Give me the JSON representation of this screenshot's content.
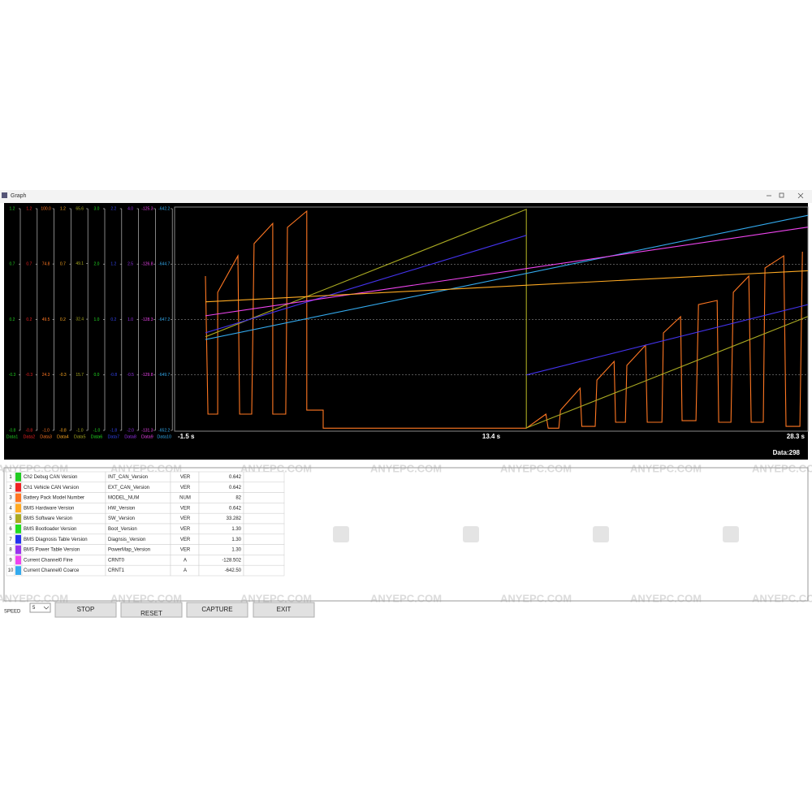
{
  "window": {
    "title": "Graph"
  },
  "graph": {
    "xlim": [
      -1.5,
      28.3
    ],
    "xticks": [
      {
        "value": -1.5,
        "label": "-1.5 s"
      },
      {
        "value": 13.4,
        "label": "13.4 s"
      },
      {
        "value": 28.3,
        "label": "28.3 s"
      }
    ],
    "axes": [
      {
        "name": "Data1",
        "color": "#22cc22",
        "ylim": [
          -0.8,
          1.2
        ],
        "ticks": [
          1.2,
          0.7,
          0.2,
          -0.3,
          -0.8
        ]
      },
      {
        "name": "Data2",
        "color": "#ee2222",
        "ylim": [
          -0.8,
          1.2
        ],
        "ticks": [
          1.2,
          0.7,
          0.2,
          -0.3,
          -0.8
        ]
      },
      {
        "name": "Data3",
        "color": "#ff7722",
        "ylim": [
          -1,
          100
        ],
        "ticks": [
          {
            "value": 100,
            "label": "100.0"
          },
          74.8,
          49.5,
          24.3,
          {
            "value": -1,
            "label": "-1.0"
          }
        ]
      },
      {
        "name": "Data4",
        "color": "#ffaa22",
        "ylim": [
          -0.8,
          1.2
        ],
        "ticks": [
          1.2,
          0.7,
          0.2,
          -0.3,
          -0.8
        ]
      },
      {
        "name": "Data5",
        "color": "#aaaa22",
        "ylim": [
          -1,
          65.6
        ],
        "ticks": [
          65.6,
          49.1,
          32.4,
          15.7,
          {
            "value": -1,
            "label": "-1.0"
          }
        ]
      },
      {
        "name": "Data6",
        "color": "#22dd22",
        "ylim": [
          -1,
          3
        ],
        "ticks": [
          {
            "value": 3,
            "label": "3.0"
          },
          {
            "value": 2,
            "label": "2.0"
          },
          {
            "value": 1,
            "label": "1.0"
          },
          {
            "value": 0,
            "label": "0.0"
          },
          {
            "value": -1,
            "label": "-1.0"
          }
        ]
      },
      {
        "name": "Data7",
        "color": "#3344ee",
        "ylim": [
          -1.8,
          2.2
        ],
        "ticks": [
          2.2,
          1.2,
          0.2,
          -0.8,
          -1.8
        ]
      },
      {
        "name": "Data8",
        "color": "#9933ee",
        "ylim": [
          -2,
          4
        ],
        "ticks": [
          {
            "value": 4,
            "label": "4.0"
          },
          2.5,
          {
            "value": 1,
            "label": "1.0"
          },
          -0.5,
          {
            "value": -2,
            "label": "-2.0"
          }
        ]
      },
      {
        "name": "Data9",
        "color": "#ee44ee",
        "ylim": [
          -131.3,
          -125.3
        ],
        "ticks": [
          -125.3,
          -126.8,
          -128.3,
          -129.8,
          -131.3
        ]
      },
      {
        "name": "Data10",
        "color": "#33aaee",
        "ylim": [
          -652.2,
          -642.2
        ],
        "ticks": [
          -642.2,
          -644.7,
          -647.2,
          -649.7,
          -652.2
        ]
      }
    ],
    "series": [
      {
        "axis": 2,
        "color": "#ff7722",
        "x": [
          -0.05,
          0.07,
          0.53,
          0.53,
          1.48,
          1.56,
          2.13,
          2.24,
          3.12,
          3.12,
          3.73,
          3.81,
          4.72,
          4.72,
          5.49,
          5.49,
          15.05,
          15.97,
          16.08,
          16.58,
          16.66,
          17.58,
          17.66,
          18.29,
          18.37,
          19.18,
          19.25,
          19.71,
          19.78,
          20.66,
          20.74,
          21.43,
          21.5,
          22.31,
          22.38,
          23.03,
          23.15,
          24.03,
          24.1,
          24.68,
          24.79,
          25.52,
          25.63,
          26.2,
          26.28,
          27.16,
          27.27,
          27.92,
          28.04
        ],
        "values": [
          69.3,
          6.4,
          6.4,
          61.9,
          78.5,
          6.4,
          6.4,
          84.1,
          93.3,
          6.4,
          6.4,
          91.5,
          98.9,
          8.2,
          8.2,
          0,
          0,
          6.4,
          0,
          0,
          8.2,
          18.2,
          0.8,
          0.8,
          21.9,
          30.4,
          2.7,
          2.7,
          28.6,
          37.8,
          2.7,
          2.7,
          43.4,
          50.8,
          3.4,
          3.4,
          56.3,
          58.2,
          2.7,
          2.7,
          61.9,
          69.3,
          2.7,
          2.7,
          73,
          78.5,
          0.8,
          0.8,
          80.4
        ]
      },
      {
        "axis": 4,
        "color": "#aaaa22",
        "x": [
          -0.05,
          15.05,
          15.05,
          28.3
        ],
        "values": [
          27.1,
          65.4,
          -0.3,
          33.2
        ]
      },
      {
        "axis": 6,
        "color": "#4433ee",
        "x": [
          -0.05,
          15.05,
          15.05,
          15.05,
          28.3
        ],
        "values": [
          -0.04,
          1.72,
          null,
          -0.8,
          0.47
        ]
      },
      {
        "axis": 9,
        "color": "#33aaee",
        "x": [
          -0.05,
          28.3
        ],
        "values": [
          -648.1,
          -642.5
        ]
      },
      {
        "axis": 8,
        "color": "#ee44ee",
        "x": [
          -0.05,
          28.3
        ],
        "values": [
          -128.2,
          -125.8
        ]
      },
      {
        "axis": 3,
        "color": "#ffaa22",
        "x": [
          -0.05,
          28.3
        ],
        "values": [
          0.36,
          0.64
        ]
      }
    ],
    "grid": true,
    "count_label": "Data:298"
  },
  "table": {
    "rows": [
      {
        "no": "1",
        "color": "#22cc22",
        "name": "Ch2 Debug CAN Version",
        "code": "INT_CAN_Version",
        "unit": "VER",
        "value": "0.642"
      },
      {
        "no": "2",
        "color": "#ee2222",
        "name": "Ch1 Vehicle CAN Version",
        "code": "EXT_CAN_Version",
        "unit": "VER",
        "value": "0.642"
      },
      {
        "no": "3",
        "color": "#ff7722",
        "name": "Battery Pack Model Number",
        "code": "MODEL_NUM",
        "unit": "NUM",
        "value": "82"
      },
      {
        "no": "4",
        "color": "#ffaa22",
        "name": "BMS Hardware Version",
        "code": "HW_Version",
        "unit": "VER",
        "value": "0.642"
      },
      {
        "no": "5",
        "color": "#aaaa22",
        "name": "BMS Software Version",
        "code": "SW_Version",
        "unit": "VER",
        "value": "33.282"
      },
      {
        "no": "6",
        "color": "#22dd22",
        "name": "BMS Bootloader Version",
        "code": "Boot_Version",
        "unit": "VER",
        "value": "1.30"
      },
      {
        "no": "7",
        "color": "#2233ee",
        "name": "BMS Diagnosis Table Version",
        "code": "Diagnsis_Version",
        "unit": "VER",
        "value": "1.30"
      },
      {
        "no": "8",
        "color": "#9933ee",
        "name": "BMS Power Table Version",
        "code": "PowerMap_Version",
        "unit": "VER",
        "value": "1.30"
      },
      {
        "no": "9",
        "color": "#ee44ee",
        "name": "Current Channel0 Fine",
        "code": "CRNT0",
        "unit": "A",
        "value": "-128.502"
      },
      {
        "no": "10",
        "color": "#33aaee",
        "name": "Current Channel0 Coarce",
        "code": "CRNT1",
        "unit": "A",
        "value": "-642.50"
      }
    ]
  },
  "controls": {
    "speed_label": "SPEED",
    "speed_value": "5",
    "buttons": [
      "STOP",
      "RESET",
      "CAPTURE",
      "EXIT"
    ]
  },
  "watermark": "ANYEPC.COM"
}
